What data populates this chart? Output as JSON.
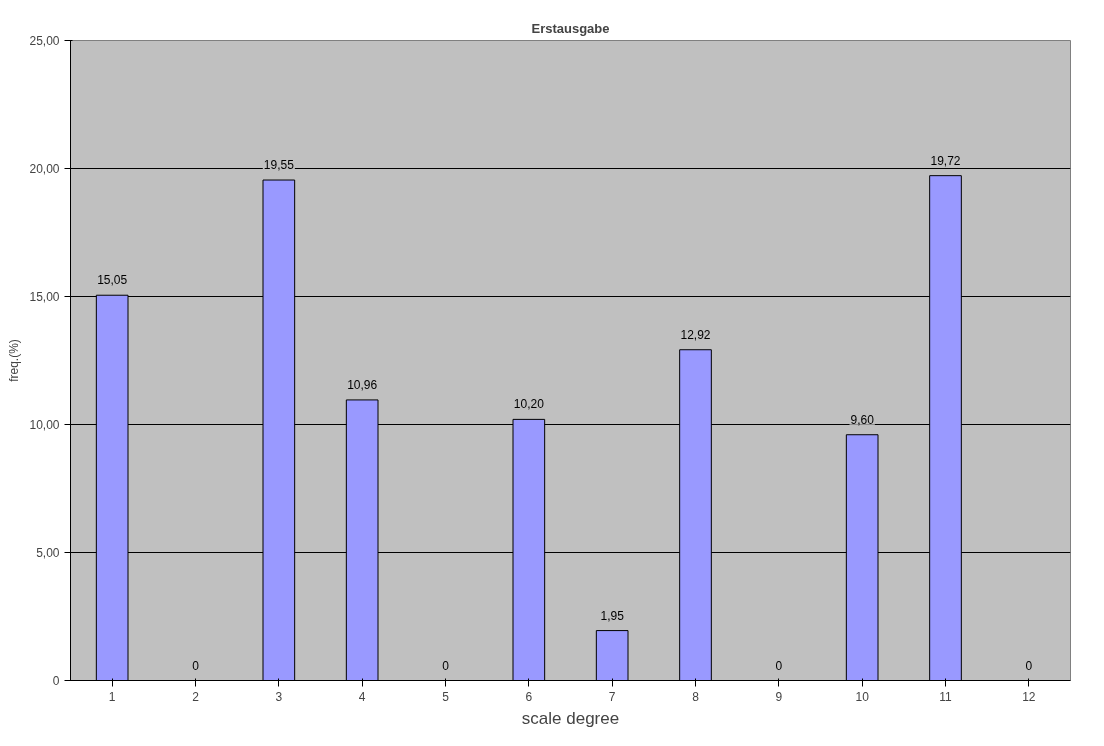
{
  "chart_data": {
    "type": "bar",
    "title": "Erstausgabe",
    "xlabel": "scale degree",
    "ylabel": "freq.(%)",
    "categories": [
      "1",
      "2",
      "3",
      "4",
      "5",
      "6",
      "7",
      "8",
      "9",
      "10",
      "11",
      "12"
    ],
    "values": [
      15.05,
      0,
      19.55,
      10.96,
      0,
      10.2,
      1.95,
      12.92,
      0,
      9.6,
      19.72,
      0
    ],
    "value_labels": [
      "15,05",
      "0",
      "19,55",
      "10,96",
      "0",
      "10,20",
      "1,95",
      "12,92",
      "0",
      "9,60",
      "19,72",
      "0"
    ],
    "color": "#9999ff",
    "ylim": [
      0,
      25
    ],
    "yticks": [
      {
        "value": 0,
        "label": "0"
      },
      {
        "value": 5,
        "label": "5,00"
      },
      {
        "value": 10,
        "label": "10,00"
      },
      {
        "value": 15,
        "label": "15,00"
      },
      {
        "value": 20,
        "label": "20,00"
      },
      {
        "value": 25,
        "label": "25,00"
      }
    ],
    "grid": "y"
  }
}
